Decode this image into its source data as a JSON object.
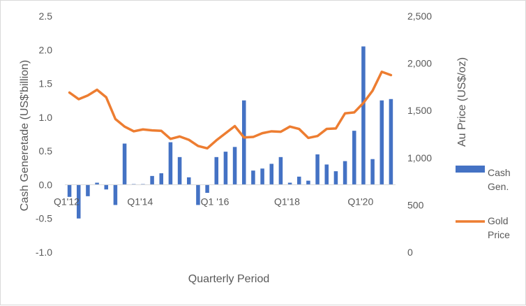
{
  "chart_data": {
    "type": "bar+line",
    "title": "",
    "xlabel": "Quarterly Period",
    "ylabel_left": "Cash Generetade  (US$'billion)",
    "ylabel_right": "Au Price (US$/oz)",
    "ylim_left": [
      -1.0,
      2.5
    ],
    "ylim_right": [
      0,
      2500
    ],
    "y_ticks_left": [
      "2.5",
      "2.0",
      "1.5",
      "1.0",
      "0.5",
      "0.0",
      "-0.5",
      "-1.0"
    ],
    "y_ticks_right": [
      "2,500",
      "2,000",
      "1,500",
      "1,000",
      "500",
      "0"
    ],
    "x_tick_labels": [
      {
        "label": "Q1'12",
        "index": 0
      },
      {
        "label": "Q1'14",
        "index": 8
      },
      {
        "label": "Q1 '16",
        "index": 16
      },
      {
        "label": "Q1'18",
        "index": 24
      },
      {
        "label": "Q1'20",
        "index": 32
      }
    ],
    "grid": false,
    "legend_position": "right",
    "colors": {
      "bars": "#4472c4",
      "line": "#ed7d31",
      "text": "#595959",
      "axis": "#d9d9d9"
    },
    "series": [
      {
        "name": "Cash Gen.",
        "kind": "bar",
        "axis": "left",
        "values": [
          -0.18,
          -0.5,
          -0.17,
          0.03,
          -0.07,
          -0.3,
          0.61,
          0.01,
          0.01,
          0.13,
          0.17,
          0.63,
          0.41,
          0.11,
          -0.3,
          -0.12,
          0.41,
          0.49,
          0.56,
          1.25,
          0.21,
          0.24,
          0.31,
          0.41,
          0.03,
          0.12,
          0.06,
          0.45,
          0.3,
          0.2,
          0.35,
          0.8,
          2.05,
          0.38,
          1.25,
          1.27
        ]
      },
      {
        "name": "Gold Price",
        "kind": "line",
        "axis": "right",
        "values": [
          1690,
          1620,
          1660,
          1720,
          1640,
          1410,
          1330,
          1280,
          1300,
          1290,
          1285,
          1200,
          1225,
          1190,
          1125,
          1100,
          1185,
          1260,
          1335,
          1215,
          1220,
          1260,
          1280,
          1275,
          1330,
          1305,
          1210,
          1230,
          1305,
          1310,
          1470,
          1480,
          1580,
          1710,
          1910,
          1875
        ]
      }
    ]
  }
}
